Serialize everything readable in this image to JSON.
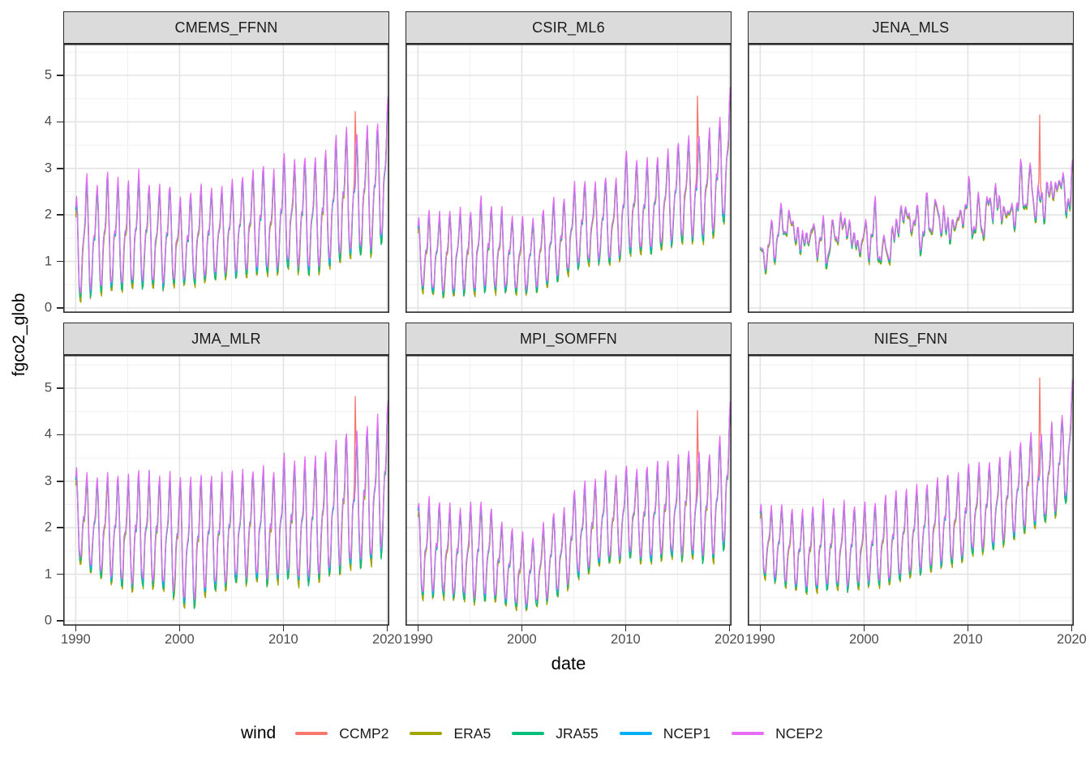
{
  "chart_data": {
    "type": "line",
    "xlabel": "date",
    "ylabel": "fgco2_glob",
    "x_ticks": [
      1990,
      2000,
      2010,
      2020
    ],
    "x_tick_labels": [
      "1990",
      "2000",
      "2010",
      "2020"
    ],
    "x_minor_ticks": [
      1995,
      2005,
      2015
    ],
    "y_ticks": [
      0,
      1,
      2,
      3,
      4,
      5
    ],
    "y_tick_labels": [
      "0",
      "1",
      "2",
      "3",
      "4",
      "5"
    ],
    "y_minor_ticks": [
      0.5,
      1.5,
      2.5,
      3.5,
      4.5,
      5.5
    ],
    "x_range_years": [
      1990,
      2020.17
    ],
    "grid": true,
    "colors": {
      "panel_border": "#2b2b2b",
      "strip_background": "#dbdbdb",
      "grid_major": "#e3e3e3",
      "grid_minor": "#f0f0f0",
      "tick_label": "#4d4d4d"
    },
    "legend": {
      "title": "wind",
      "position": "bottom",
      "entries": [
        {
          "name": "CCMP2",
          "color": "#F8766D"
        },
        {
          "name": "ERA5",
          "color": "#A3A500"
        },
        {
          "name": "JRA55",
          "color": "#00BF7D"
        },
        {
          "name": "NCEP1",
          "color": "#00B0F6"
        },
        {
          "name": "NCEP2",
          "color": "#E76BF3"
        }
      ]
    },
    "panels_note": "Monthly series 1990-2020 per facet; mid/amp are yearly keyframes of the seasonal envelope (mean and half peak-trough amplitude, read from the plot); spike = CCMP2 anomaly peak near 2017.",
    "panels": [
      {
        "title": "CMEMS_FFNN",
        "kind": "seasonal",
        "mid": [
          1.18,
          1.48,
          1.4,
          1.58,
          1.48,
          1.48,
          1.58,
          1.5,
          1.45,
          1.5,
          1.38,
          1.4,
          1.5,
          1.5,
          1.55,
          1.65,
          1.68,
          1.75,
          1.83,
          1.7,
          1.98,
          1.93,
          1.9,
          1.9,
          2.03,
          2.2,
          2.35,
          2.3,
          2.43,
          2.48,
          2.98
        ],
        "amp": [
          0.93,
          1.08,
          0.95,
          1.03,
          0.98,
          0.93,
          1.03,
          0.9,
          0.9,
          0.9,
          0.73,
          0.8,
          0.85,
          0.8,
          0.8,
          0.85,
          0.88,
          0.9,
          0.93,
          0.9,
          1.03,
          0.93,
          1.05,
          1.0,
          1.03,
          1.1,
          1.15,
          1.05,
          1.13,
          1.13,
          1.18
        ],
        "spike": {
          "t": 2016.9167,
          "peak": 4.22
        }
      },
      {
        "title": "CSIR_ML6",
        "kind": "seasonal",
        "mid": [
          1.13,
          1.1,
          1.1,
          1.08,
          1.18,
          1.13,
          1.28,
          1.23,
          1.15,
          1.1,
          1.05,
          1.08,
          1.2,
          1.38,
          1.43,
          1.65,
          1.75,
          1.75,
          1.85,
          1.78,
          2.2,
          2.1,
          2.08,
          2.13,
          2.28,
          2.4,
          2.5,
          2.48,
          2.55,
          2.73,
          3.28
        ],
        "amp": [
          0.58,
          0.75,
          0.7,
          0.78,
          0.73,
          0.73,
          0.83,
          0.73,
          0.75,
          0.65,
          0.7,
          0.63,
          0.7,
          0.73,
          0.68,
          0.75,
          0.75,
          0.7,
          0.75,
          0.73,
          0.9,
          0.8,
          0.83,
          0.83,
          0.83,
          0.9,
          0.9,
          0.93,
          0.95,
          0.98,
          1.08
        ],
        "spike": {
          "t": 2016.9167,
          "peak": 4.55
        }
      },
      {
        "title": "JENA_MLS",
        "kind": "noisy",
        "mid": [
          1.15,
          1.45,
          1.55,
          1.9,
          1.5,
          1.4,
          1.45,
          1.55,
          1.65,
          1.55,
          1.5,
          1.4,
          1.25,
          1.7,
          1.85,
          1.9,
          1.8,
          1.85,
          1.9,
          1.8,
          2.05,
          2.0,
          2.1,
          2.1,
          2.15,
          2.3,
          2.4,
          2.45,
          2.4,
          2.5,
          2.6
        ],
        "amp": [
          0.35,
          0.4,
          0.4,
          0.45,
          0.4,
          0.38,
          0.4,
          0.4,
          0.42,
          0.4,
          0.45,
          0.5,
          0.45,
          0.45,
          0.45,
          0.45,
          0.45,
          0.45,
          0.45,
          0.45,
          0.48,
          0.45,
          0.48,
          0.48,
          0.48,
          0.5,
          0.5,
          0.5,
          0.5,
          0.5,
          0.5
        ],
        "spike": {
          "t": 2016.9167,
          "peak": 4.15
        }
      },
      {
        "title": "JMA_MLR",
        "kind": "seasonal",
        "mid": [
          2.23,
          2.05,
          1.95,
          1.95,
          1.9,
          1.8,
          1.88,
          1.88,
          1.8,
          1.8,
          1.7,
          1.53,
          1.73,
          1.78,
          1.78,
          1.9,
          1.93,
          1.98,
          2.0,
          1.9,
          2.15,
          2.05,
          1.98,
          2.1,
          2.2,
          2.35,
          2.5,
          2.45,
          2.58,
          2.65,
          3.1
        ],
        "amp": [
          0.78,
          0.85,
          0.85,
          0.95,
          0.95,
          1.0,
          1.03,
          0.98,
          1.0,
          1.05,
          1.1,
          1.18,
          1.08,
          0.98,
          1.03,
          1.0,
          0.98,
          0.98,
          1.0,
          1.0,
          1.05,
          1.05,
          1.13,
          1.1,
          1.1,
          1.15,
          1.2,
          1.15,
          1.23,
          1.25,
          1.3
        ],
        "spike": {
          "t": 2016.9167,
          "peak": 4.82
        }
      },
      {
        "title": "MPI_SOMFFN",
        "kind": "seasonal",
        "mid": [
          1.48,
          1.48,
          1.5,
          1.38,
          1.38,
          1.38,
          1.43,
          1.4,
          1.2,
          1.08,
          0.98,
          0.95,
          1.15,
          1.35,
          1.43,
          1.78,
          1.9,
          1.98,
          2.18,
          2.08,
          2.3,
          2.23,
          2.2,
          2.25,
          2.33,
          2.3,
          2.45,
          2.38,
          2.35,
          2.53,
          3.1
        ],
        "amp": [
          0.83,
          0.88,
          0.8,
          0.83,
          0.78,
          0.88,
          0.88,
          0.8,
          0.7,
          0.68,
          0.68,
          0.6,
          0.7,
          0.75,
          0.73,
          0.78,
          0.8,
          0.78,
          0.78,
          0.78,
          0.8,
          0.78,
          0.85,
          0.85,
          0.83,
          0.9,
          0.95,
          0.93,
          0.95,
          1.03,
          1.2
        ],
        "spike": {
          "t": 2016.9167,
          "peak": 4.52
        }
      },
      {
        "title": "NIES_FNN",
        "kind": "seasonal",
        "mid": [
          1.68,
          1.6,
          1.6,
          1.5,
          1.45,
          1.45,
          1.53,
          1.5,
          1.53,
          1.53,
          1.58,
          1.6,
          1.63,
          1.73,
          1.78,
          1.88,
          1.93,
          2.03,
          2.13,
          2.08,
          2.3,
          2.33,
          2.38,
          2.48,
          2.63,
          2.75,
          2.93,
          2.93,
          3.13,
          3.28,
          3.88
        ],
        "amp": [
          0.63,
          0.65,
          0.7,
          0.7,
          0.7,
          0.75,
          0.78,
          0.7,
          0.78,
          0.73,
          0.73,
          0.7,
          0.78,
          0.78,
          0.78,
          0.78,
          0.78,
          0.78,
          0.78,
          0.78,
          0.8,
          0.78,
          0.78,
          0.78,
          0.78,
          0.8,
          0.83,
          0.78,
          0.83,
          0.83,
          0.98
        ],
        "spike": {
          "t": 2016.9167,
          "peak": 5.22
        }
      }
    ]
  }
}
